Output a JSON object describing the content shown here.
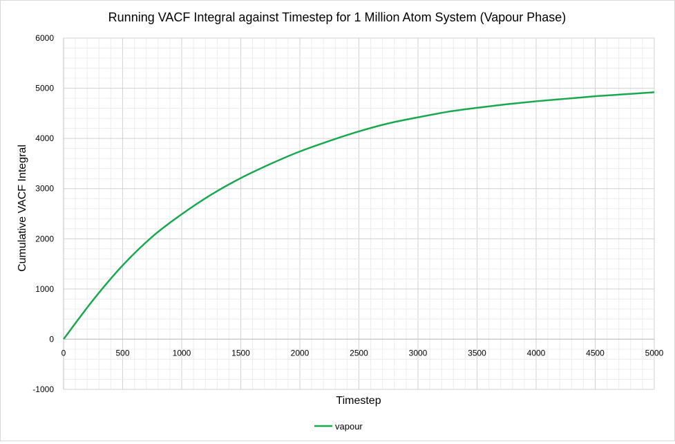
{
  "chart_data": {
    "type": "line",
    "title": "Running VACF Integral against Timestep for 1 Million Atom System (Vapour Phase)",
    "xlabel": "Timestep",
    "ylabel": "Cumulative VACF Integral",
    "xlim": [
      0,
      5000
    ],
    "ylim": [
      -1000,
      6000
    ],
    "xticks": [
      "0",
      "500",
      "1000",
      "1500",
      "2000",
      "2500",
      "3000",
      "3500",
      "4000",
      "4500",
      "5000"
    ],
    "yticks": [
      "-1000",
      "0",
      "1000",
      "2000",
      "3000",
      "4000",
      "5000",
      "6000"
    ],
    "grid": true,
    "legend_position": "bottom",
    "series": [
      {
        "name": "vapour",
        "color": "#1aa84f",
        "x": [
          0,
          250,
          500,
          750,
          1000,
          1250,
          1500,
          1750,
          2000,
          2250,
          2500,
          2750,
          3000,
          3250,
          3500,
          3750,
          4000,
          4250,
          4500,
          4750,
          5000
        ],
        "y": [
          0,
          780,
          1470,
          2040,
          2490,
          2880,
          3210,
          3490,
          3740,
          3950,
          4140,
          4300,
          4420,
          4530,
          4610,
          4680,
          4740,
          4790,
          4840,
          4880,
          4920
        ]
      }
    ]
  }
}
